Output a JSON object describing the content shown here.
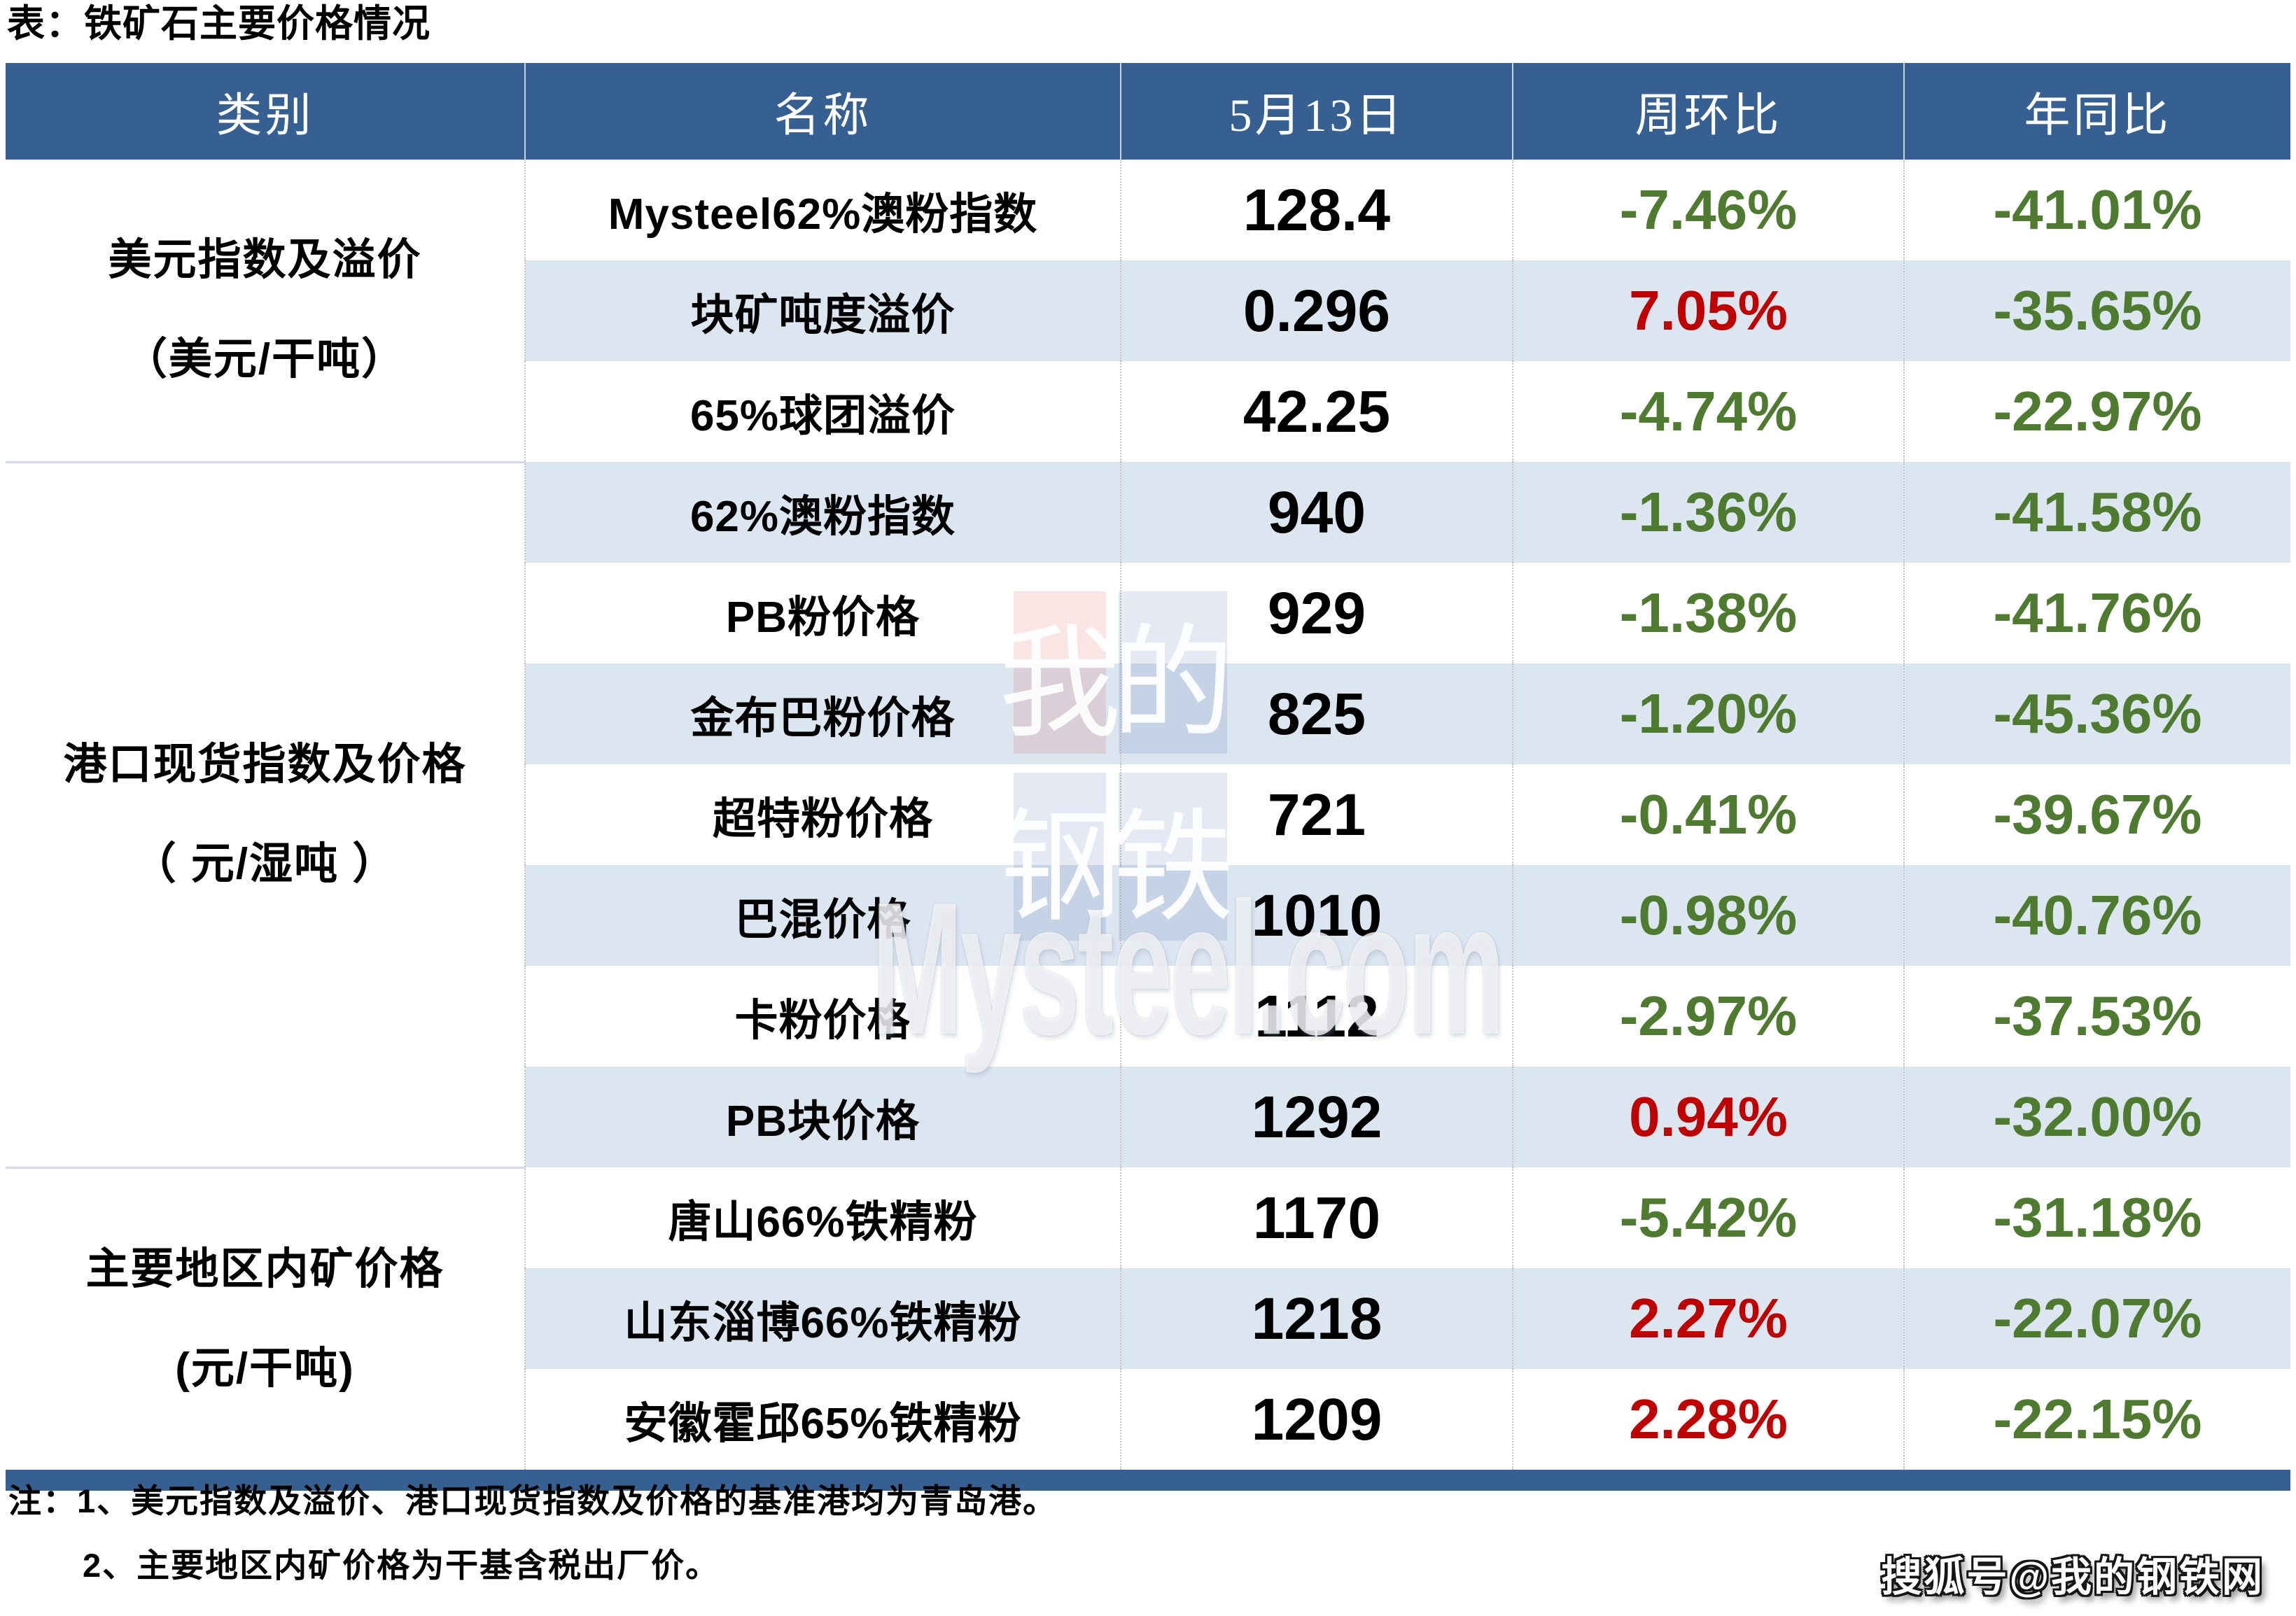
{
  "title": "表：铁矿石主要价格情况",
  "chart_data": {
    "type": "table",
    "title": "表：铁矿石主要价格情况",
    "columns": [
      "类别",
      "名称",
      "5月13日",
      "周环比",
      "年同比"
    ],
    "groups": [
      {
        "category": "美元指数及溢价",
        "unit": "（美元/干吨）",
        "rows": [
          {
            "name": "Mysteel62%澳粉指数",
            "value": "128.4",
            "wow": "-7.46%",
            "wow_color": "green",
            "yoy": "-41.01%",
            "yoy_color": "green"
          },
          {
            "name": "块矿吨度溢价",
            "value": "0.296",
            "wow": "7.05%",
            "wow_color": "red",
            "yoy": "-35.65%",
            "yoy_color": "green"
          },
          {
            "name": "65%球团溢价",
            "value": "42.25",
            "wow": "-4.74%",
            "wow_color": "green",
            "yoy": "-22.97%",
            "yoy_color": "green"
          }
        ]
      },
      {
        "category": "港口现货指数及价格",
        "unit": "（ 元/湿吨 ）",
        "rows": [
          {
            "name": "62%澳粉指数",
            "value": "940",
            "wow": "-1.36%",
            "wow_color": "green",
            "yoy": "-41.58%",
            "yoy_color": "green"
          },
          {
            "name": "PB粉价格",
            "value": "929",
            "wow": "-1.38%",
            "wow_color": "green",
            "yoy": "-41.76%",
            "yoy_color": "green"
          },
          {
            "name": "金布巴粉价格",
            "value": "825",
            "wow": "-1.20%",
            "wow_color": "green",
            "yoy": "-45.36%",
            "yoy_color": "green"
          },
          {
            "name": "超特粉价格",
            "value": "721",
            "wow": "-0.41%",
            "wow_color": "green",
            "yoy": "-39.67%",
            "yoy_color": "green"
          },
          {
            "name": "巴混价格",
            "value": "1010",
            "wow": "-0.98%",
            "wow_color": "green",
            "yoy": "-40.76%",
            "yoy_color": "green"
          },
          {
            "name": "卡粉价格",
            "value": "1112",
            "wow": "-2.97%",
            "wow_color": "green",
            "yoy": "-37.53%",
            "yoy_color": "green"
          },
          {
            "name": "PB块价格",
            "value": "1292",
            "wow": "0.94%",
            "wow_color": "red",
            "yoy": "-32.00%",
            "yoy_color": "green"
          }
        ]
      },
      {
        "category": "主要地区内矿价格",
        "unit": "(元/干吨)",
        "rows": [
          {
            "name": "唐山66%铁精粉",
            "value": "1170",
            "wow": "-5.42%",
            "wow_color": "green",
            "yoy": "-31.18%",
            "yoy_color": "green"
          },
          {
            "name": "山东淄博66%铁精粉",
            "value": "1218",
            "wow": "2.27%",
            "wow_color": "red",
            "yoy": "-22.07%",
            "yoy_color": "green"
          },
          {
            "name": "安徽霍邱65%铁精粉",
            "value": "1209",
            "wow": "2.28%",
            "wow_color": "red",
            "yoy": "-22.15%",
            "yoy_color": "green"
          }
        ]
      }
    ]
  },
  "notes": [
    "注：1、美元指数及溢价、港口现货指数及价格的基准港均为青岛港。",
    "2、主要地区内矿价格为干基含税出厂价。"
  ],
  "watermark": {
    "chars": [
      "我",
      "的",
      "钢",
      "铁"
    ],
    "brand": "Mysteel.com"
  },
  "footer_badge": "搜狐号@我的钢铁网",
  "colors": {
    "header_bg": "#366092",
    "row_stripe": "#DCE6F1",
    "up_red": "#C00000",
    "down_green": "#4F7B31",
    "bottom_bar": "#366092"
  }
}
